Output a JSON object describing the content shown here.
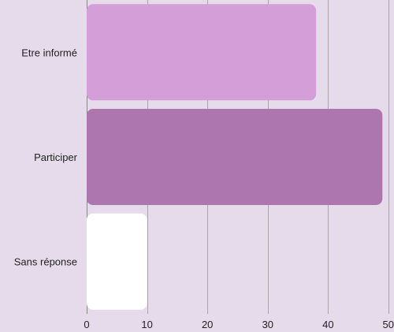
{
  "chart_data": {
    "type": "bar",
    "orientation": "horizontal",
    "title": "",
    "xlabel": "",
    "ylabel": "",
    "categories": [
      "Etre informé",
      "Participer",
      "Sans réponse"
    ],
    "values": [
      38,
      49,
      10
    ],
    "colors": [
      "#d49ed8",
      "#ae76ae",
      "#ffffff"
    ],
    "xlim": [
      0,
      50
    ],
    "xticks": [
      0,
      10,
      20,
      30,
      40,
      50
    ],
    "grid": true,
    "legend": "none"
  }
}
